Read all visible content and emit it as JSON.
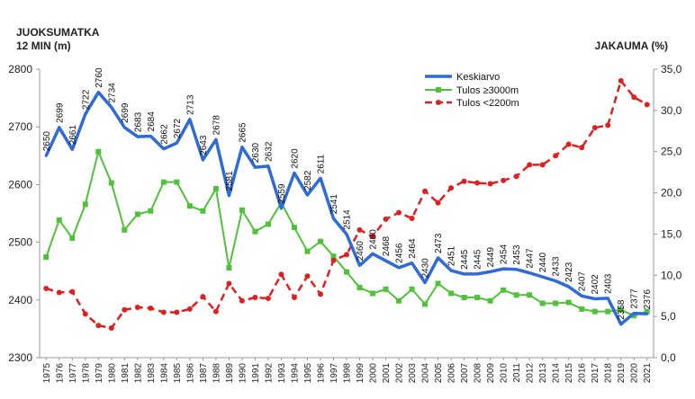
{
  "chart_data": {
    "type": "line",
    "title": "",
    "ylabel_left_line1": "JUOKSUMATKA",
    "ylabel_left_line2": "12 MIN (m)",
    "ylabel_right": "JAKAUMA (%)",
    "x": [
      1975,
      1976,
      1977,
      1978,
      1979,
      1980,
      1981,
      1982,
      1983,
      1984,
      1985,
      1986,
      1987,
      1988,
      1989,
      1990,
      1991,
      1992,
      1993,
      1994,
      1995,
      1996,
      1997,
      1998,
      1999,
      2000,
      2001,
      2002,
      2003,
      2004,
      2005,
      2006,
      2007,
      2008,
      2009,
      2010,
      2011,
      2012,
      2013,
      2014,
      2015,
      2016,
      2017,
      2018,
      2019,
      2020,
      2021
    ],
    "xtick_labels": [
      "1975",
      "1976",
      "1977",
      "1978",
      "1979",
      "1980",
      "1981",
      "1982",
      "1983",
      "1984",
      "1985",
      "1986",
      "1987",
      "1988",
      "1989",
      "1990",
      "1991",
      "1992",
      "1993",
      "1994",
      "1995",
      "1996",
      "1997",
      "1998",
      "1999",
      "2000",
      "2001",
      "2002",
      "2003",
      "2004",
      "2005",
      "2006",
      "2007",
      "2008",
      "2009",
      "2010",
      "2011",
      "2012",
      "2013",
      "2014",
      "2015",
      "2016",
      "2017",
      "2018",
      "2019",
      "2020",
      "2021"
    ],
    "ylim_left": [
      2300,
      2800
    ],
    "yticks_left": [
      "2300",
      "2400",
      "2500",
      "2600",
      "2700",
      "2800"
    ],
    "yticks_left_values": [
      2300,
      2400,
      2500,
      2600,
      2700,
      2800
    ],
    "ylim_right": [
      0,
      35
    ],
    "yticks_right": [
      "0,0",
      "5,0",
      "10,0",
      "15,0",
      "20,0",
      "25,0",
      "30,0",
      "35,0"
    ],
    "yticks_right_values": [
      0,
      5,
      10,
      15,
      20,
      25,
      30,
      35
    ],
    "grid": false,
    "legend_position": "top-right",
    "series": [
      {
        "name": "Keskiarvo",
        "axis": "left",
        "color": "#2e6bd6",
        "style": "solid",
        "values": [
          2650,
          2699,
          2661,
          2722,
          2760,
          2734,
          2699,
          2683,
          2684,
          2662,
          2672,
          2713,
          2643,
          2678,
          2581,
          2665,
          2630,
          2632,
          2559,
          2620,
          2582,
          2611,
          2541,
          2514,
          2460,
          2480,
          2468,
          2456,
          2464,
          2430,
          2473,
          2451,
          2445,
          2445,
          2449,
          2454,
          2453,
          2447,
          2440,
          2433,
          2423,
          2407,
          2402,
          2403,
          2358,
          2377,
          2376
        ],
        "labels": [
          "2650",
          "2699",
          "2661",
          "2722",
          "2760",
          "2734",
          "2699",
          "2683",
          "2684",
          "2662",
          "2672",
          "2713",
          "2643",
          "2678",
          "2581",
          "2665",
          "2630",
          "2632",
          "2559",
          "2620",
          "2582",
          "2611",
          "2541",
          "2514",
          "2460",
          "2480",
          "2468",
          "2456",
          "2464",
          "2430",
          "2473",
          "2451",
          "2445",
          "2445",
          "2449",
          "2454",
          "2453",
          "2447",
          "2440",
          "2433",
          "2423",
          "2407",
          "2402",
          "2403",
          "2358",
          "2377",
          "2376"
        ]
      },
      {
        "name": "Tulos ≥3000m",
        "axis": "right",
        "color": "#4fc23a",
        "style": "solid",
        "values": [
          12.2,
          16.7,
          14.5,
          18.6,
          25.0,
          21.2,
          15.5,
          17.4,
          17.8,
          21.3,
          21.3,
          18.4,
          17.8,
          20.5,
          10.9,
          17.9,
          15.3,
          16.2,
          18.8,
          15.8,
          12.9,
          14.1,
          12.3,
          10.4,
          8.5,
          7.8,
          8.3,
          6.9,
          8.3,
          6.5,
          9.0,
          7.8,
          7.3,
          7.3,
          6.9,
          8.2,
          7.6,
          7.6,
          6.6,
          6.6,
          6.7,
          5.9,
          5.6,
          5.6,
          5.8,
          5.1,
          5.6
        ]
      },
      {
        "name": "Tulos <2200m",
        "axis": "right",
        "color": "#e02020",
        "style": "dashed",
        "values": [
          8.4,
          7.9,
          8.0,
          5.3,
          3.9,
          3.6,
          5.8,
          6.1,
          6.0,
          5.5,
          5.5,
          5.9,
          7.4,
          5.6,
          9.0,
          6.9,
          7.3,
          7.2,
          10.1,
          7.3,
          9.9,
          7.7,
          11.8,
          12.5,
          15.5,
          14.7,
          16.8,
          17.6,
          16.9,
          20.2,
          18.8,
          20.6,
          21.4,
          21.2,
          21.1,
          21.5,
          22.0,
          23.4,
          23.4,
          24.5,
          25.9,
          25.5,
          27.9,
          28.2,
          33.6,
          31.6,
          30.7
        ]
      }
    ]
  }
}
